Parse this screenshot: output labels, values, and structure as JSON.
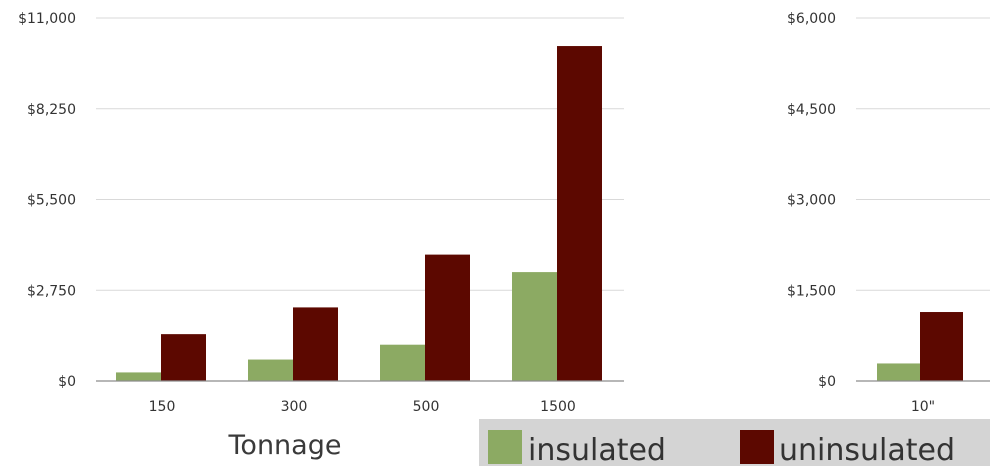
{
  "chart_data": [
    {
      "type": "bar",
      "categories": [
        "150",
        "300",
        "500",
        "1500"
      ],
      "series": [
        {
          "name": "insulated",
          "values": [
            260,
            650,
            1100,
            3300
          ]
        },
        {
          "name": "uninsulated",
          "values": [
            1420,
            2230,
            3830,
            10150
          ]
        }
      ],
      "xlabel": "Tonnage",
      "ylim": [
        0,
        11000
      ],
      "yticks": [
        "$0",
        "$2,750",
        "$5,500",
        "$8,250",
        "$11,000"
      ],
      "grid": true,
      "colors": {
        "insulated": "#8caa63",
        "uninsulated": "#5c0800"
      }
    },
    {
      "type": "bar",
      "categories": [
        "10\""
      ],
      "series": [
        {
          "name": "insulated",
          "values": [
            290
          ]
        },
        {
          "name": "uninsulated",
          "values": [
            1140
          ]
        }
      ],
      "ylim": [
        0,
        6000
      ],
      "yticks": [
        "$0",
        "$1,500",
        "$3,000",
        "$4,500",
        "$6,000"
      ],
      "grid": true,
      "colors": {
        "insulated": "#8caa63",
        "uninsulated": "#5c0800"
      }
    }
  ],
  "legend": {
    "items": [
      {
        "label": "insulated",
        "color": "#8caa63"
      },
      {
        "label": "uninsulated",
        "color": "#5c0800"
      }
    ],
    "background": "#d4d4d4"
  }
}
